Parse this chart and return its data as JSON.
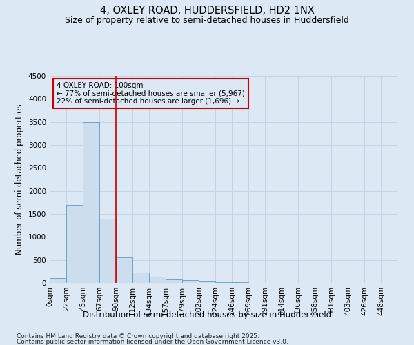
{
  "title_line1": "4, OXLEY ROAD, HUDDERSFIELD, HD2 1NX",
  "title_line2": "Size of property relative to semi-detached houses in Huddersfield",
  "xlabel": "Distribution of semi-detached houses by size in Huddersfield",
  "ylabel": "Number of semi-detached properties",
  "bar_values": [
    100,
    1700,
    3500,
    1400,
    550,
    220,
    130,
    80,
    60,
    40,
    20,
    10,
    5,
    3,
    2,
    1,
    1,
    0,
    0,
    0,
    0
  ],
  "bin_labels": [
    "0sqm",
    "22sqm",
    "45sqm",
    "67sqm",
    "90sqm",
    "112sqm",
    "134sqm",
    "157sqm",
    "179sqm",
    "202sqm",
    "224sqm",
    "246sqm",
    "269sqm",
    "291sqm",
    "314sqm",
    "336sqm",
    "358sqm",
    "381sqm",
    "403sqm",
    "426sqm",
    "448sqm"
  ],
  "bar_color": "#ccdded",
  "bar_edge_color": "#6699bb",
  "grid_color": "#c0d4e8",
  "background_color": "#dce8f4",
  "red_line_x": 4,
  "red_line_color": "#cc0000",
  "annotation_line1": "4 OXLEY ROAD: 100sqm",
  "annotation_line2": "← 77% of semi-detached houses are smaller (5,967)",
  "annotation_line3": "22% of semi-detached houses are larger (1,696) →",
  "annotation_box_edge_color": "#cc0000",
  "ylim": [
    0,
    4500
  ],
  "yticks": [
    0,
    500,
    1000,
    1500,
    2000,
    2500,
    3000,
    3500,
    4000,
    4500
  ],
  "footnote_line1": "Contains HM Land Registry data © Crown copyright and database right 2025.",
  "footnote_line2": "Contains public sector information licensed under the Open Government Licence v3.0.",
  "title_fontsize": 10.5,
  "subtitle_fontsize": 9,
  "axis_label_fontsize": 8.5,
  "tick_fontsize": 7.5,
  "annotation_fontsize": 7.5,
  "footnote_fontsize": 6.5
}
